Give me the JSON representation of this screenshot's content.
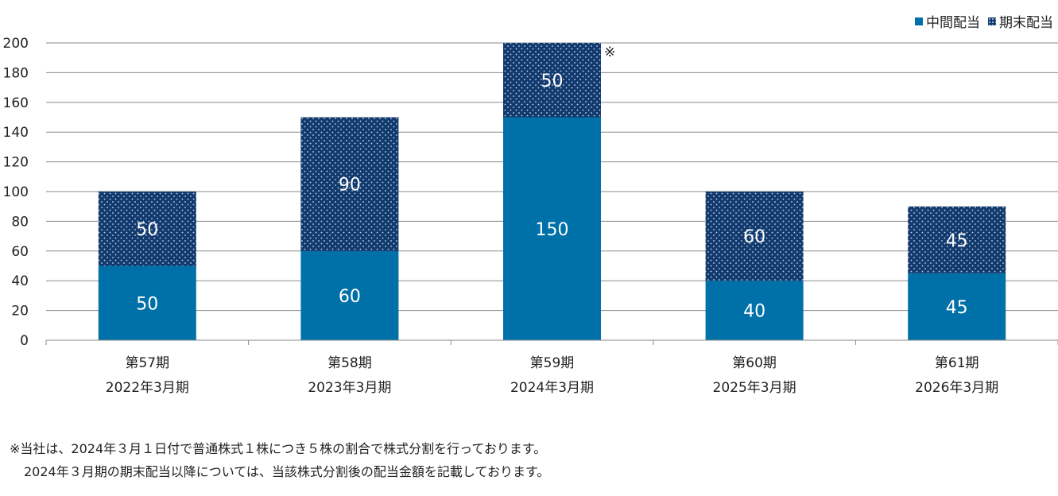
{
  "chart_data": {
    "type": "bar",
    "stacked": true,
    "categories": [
      "第57期",
      "第58期",
      "第59期",
      "第60期",
      "第61期"
    ],
    "sub_categories": [
      "2022年3月期",
      "2023年3月期",
      "2024年3月期",
      "2025年3月期",
      "2026年3月期"
    ],
    "series": [
      {
        "name": "中間配当",
        "values": [
          50,
          60,
          150,
          40,
          45
        ],
        "color": "#0071a8"
      },
      {
        "name": "期末配当",
        "values": [
          50,
          90,
          50,
          60,
          45
        ],
        "color": "#123a6e"
      }
    ],
    "ylim": [
      0,
      200
    ],
    "yticks": [
      0,
      20,
      40,
      60,
      80,
      100,
      120,
      140,
      160,
      180,
      200
    ],
    "grid": true,
    "legend_position": "top-right",
    "annotation_mark": "※",
    "annotation_category_index": 2
  },
  "footnotes": [
    "※当社は、2024年３月１日付で普通株式１株につき５株の割合で株式分割を行っております。",
    "2024年３月期の期末配当以降については、当該株式分割後の配当金額を記載しております。"
  ]
}
